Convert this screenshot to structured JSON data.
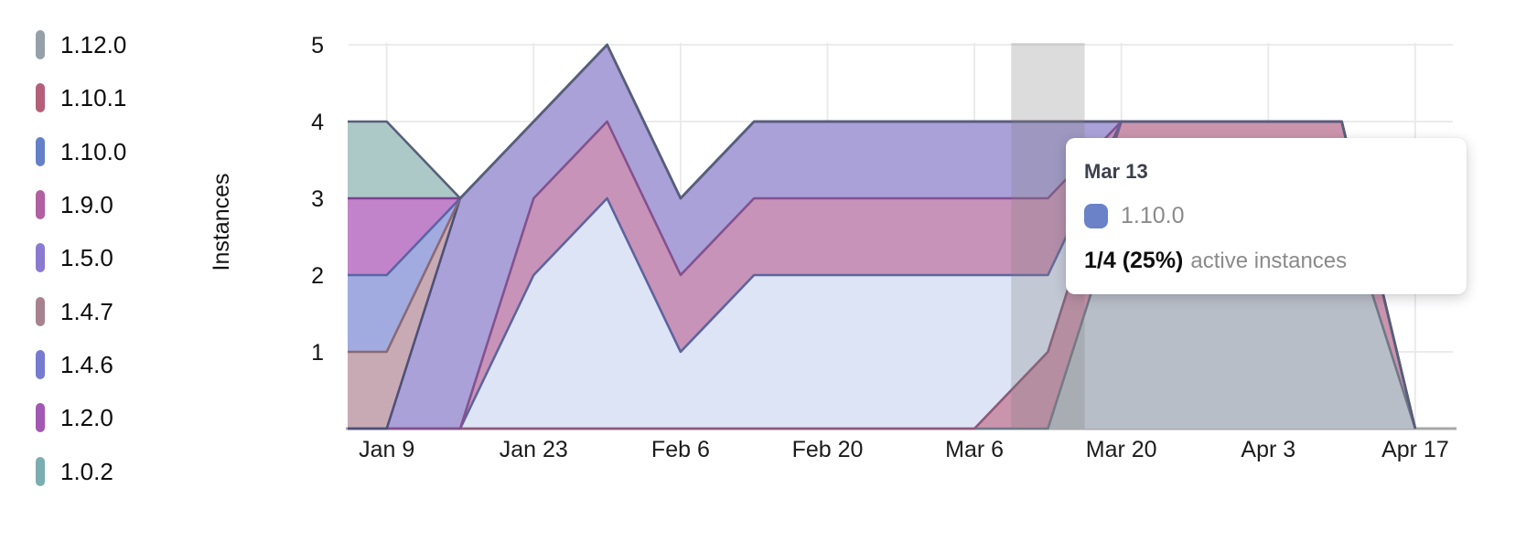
{
  "legend": {
    "items": [
      {
        "label": "1.12.0",
        "color": "#96a0a8"
      },
      {
        "label": "1.10.1",
        "color": "#b4607a"
      },
      {
        "label": "1.10.0",
        "color": "#6680c8"
      },
      {
        "label": "1.9.0",
        "color": "#b160a2"
      },
      {
        "label": "1.5.0",
        "color": "#8a7bd1"
      },
      {
        "label": "1.4.7",
        "color": "#a7838f"
      },
      {
        "label": "1.4.6",
        "color": "#757bce"
      },
      {
        "label": "1.2.0",
        "color": "#a259b4"
      },
      {
        "label": "1.0.2",
        "color": "#7badb1"
      }
    ]
  },
  "y_axis": {
    "title": "Instances",
    "ticks": [
      5,
      4,
      3,
      2,
      1
    ]
  },
  "x_axis": {
    "ticks": [
      "Jan 9",
      "Jan 23",
      "Feb 6",
      "Feb 20",
      "Mar 6",
      "Mar 20",
      "Apr 3",
      "Apr 17"
    ]
  },
  "chart_data": {
    "type": "area",
    "stacked": true,
    "title": "",
    "xlabel": "",
    "ylabel": "Instances",
    "ylim": [
      0,
      5
    ],
    "grid": true,
    "legend_position": "left",
    "x": [
      "Jan 2",
      "Jan 9",
      "Jan 16",
      "Jan 23",
      "Jan 30",
      "Feb 6",
      "Feb 13",
      "Feb 20",
      "Feb 27",
      "Mar 6",
      "Mar 13",
      "Mar 20",
      "Mar 27",
      "Apr 3",
      "Apr 10",
      "Apr 17"
    ],
    "series": [
      {
        "name": "1.12.0",
        "values": [
          0,
          0,
          0,
          0,
          0,
          0,
          0,
          0,
          0,
          0,
          0,
          3,
          3,
          3,
          3,
          0
        ],
        "fill": "#b8bec7",
        "line": "#6f7887"
      },
      {
        "name": "1.10.1",
        "values": [
          0,
          0,
          0,
          0,
          0,
          0,
          0,
          0,
          0,
          0,
          1,
          1,
          1,
          1,
          1,
          0
        ],
        "fill": "#cb94ad",
        "line": "#8d5878"
      },
      {
        "name": "1.10.0",
        "values": [
          0,
          0,
          0,
          2,
          3,
          1,
          2,
          2,
          2,
          2,
          1,
          0,
          0,
          0,
          0,
          0
        ],
        "fill": "#dde4f5",
        "line": "#5c649e"
      },
      {
        "name": "1.9.0",
        "values": [
          0,
          0,
          0,
          1,
          1,
          1,
          1,
          1,
          1,
          1,
          1,
          0,
          0,
          0,
          0,
          0
        ],
        "fill": "#c893b9",
        "line": "#84518d"
      },
      {
        "name": "1.5.0",
        "values": [
          0,
          0,
          3,
          1,
          1,
          1,
          1,
          1,
          1,
          1,
          1,
          0,
          0,
          0,
          0,
          0
        ],
        "fill": "#aaa1d9",
        "line": "#4d5078"
      },
      {
        "name": "1.4.7",
        "values": [
          1,
          1,
          0,
          0,
          0,
          0,
          0,
          0,
          0,
          0,
          0,
          0,
          0,
          0,
          0,
          0
        ],
        "fill": "#c8aab4",
        "line": "#8b6973"
      },
      {
        "name": "1.4.6",
        "values": [
          1,
          1,
          0,
          0,
          0,
          0,
          0,
          0,
          0,
          0,
          0,
          0,
          0,
          0,
          0,
          0
        ],
        "fill": "#a1abdf",
        "line": "#5b63a9"
      },
      {
        "name": "1.2.0",
        "values": [
          1,
          1,
          0,
          0,
          0,
          0,
          0,
          0,
          0,
          0,
          0,
          0,
          0,
          0,
          0,
          0
        ],
        "fill": "#c184ca",
        "line": "#7e4091"
      },
      {
        "name": "1.0.2",
        "values": [
          1,
          1,
          0,
          0,
          0,
          0,
          0,
          0,
          0,
          0,
          0,
          0,
          0,
          0,
          0,
          0
        ],
        "fill": "#acc9c7",
        "line": "#556079"
      }
    ]
  },
  "tooltip": {
    "date": "Mar 13",
    "series": "1.10.0",
    "swatch_color": "#6b82c8",
    "value": "1/4 (25%)",
    "value_label": "active instances"
  }
}
